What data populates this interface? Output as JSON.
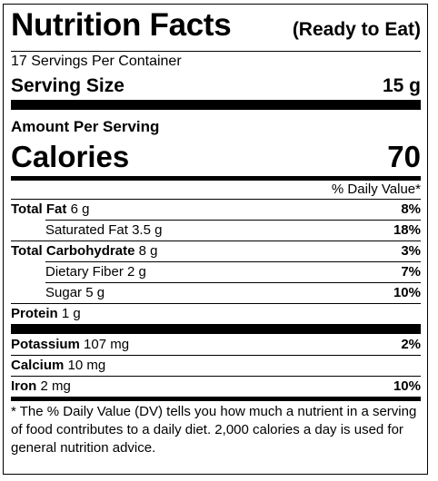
{
  "title": "Nutrition Facts",
  "title_qualifier": "(Ready to Eat)",
  "servings_per_container": "17 Servings Per Container",
  "serving_size": {
    "label": "Serving Size",
    "value": "15 g"
  },
  "amount_per_serving": "Amount Per Serving",
  "calories": {
    "label": "Calories",
    "value": "70"
  },
  "daily_value_header": "% Daily Value*",
  "nutrients": [
    {
      "name": "Total Fat",
      "amount": "6 g",
      "dv": "8%"
    },
    {
      "name": "Saturated Fat",
      "amount": "3.5 g",
      "dv": "18%"
    },
    {
      "name": "Total Carbohydrate",
      "amount": "8 g",
      "dv": "3%"
    },
    {
      "name": "Dietary Fiber",
      "amount": "2 g",
      "dv": "7%"
    },
    {
      "name": "Sugar",
      "amount": "5 g",
      "dv": "10%"
    },
    {
      "name": "Protein",
      "amount": "1 g",
      "dv": ""
    }
  ],
  "minerals": [
    {
      "name": "Potassium",
      "amount": "107 mg",
      "dv": "2%"
    },
    {
      "name": "Calcium",
      "amount": "10 mg",
      "dv": ""
    },
    {
      "name": "Iron",
      "amount": "2 mg",
      "dv": "10%"
    }
  ],
  "footnote": "* The % Daily Value (DV) tells you how much a nutrient in a serving of food contributes to a daily diet. 2,000 calories a day is used for general nutrition advice."
}
